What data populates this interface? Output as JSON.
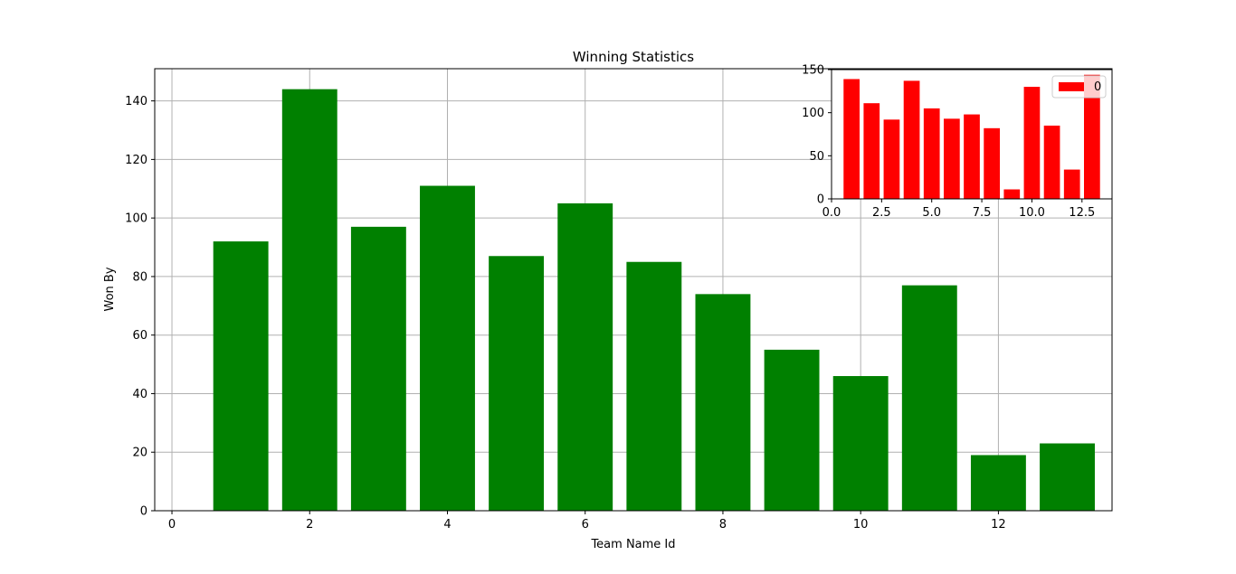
{
  "chart_data": [
    {
      "type": "bar",
      "title": "Winning Statistics",
      "xlabel": "Team Name Id",
      "ylabel": "Won By",
      "x": [
        1,
        2,
        3,
        4,
        5,
        6,
        7,
        8,
        9,
        10,
        11,
        12,
        13
      ],
      "values": [
        92,
        144,
        97,
        111,
        87,
        105,
        85,
        74,
        55,
        46,
        77,
        19,
        23
      ],
      "color": "#008000",
      "xlim": [
        -0.25,
        13.65
      ],
      "ylim": [
        0,
        151
      ],
      "xticks": [
        0,
        2,
        4,
        6,
        8,
        10,
        12
      ],
      "xtick_labels": [
        "0",
        "2",
        "4",
        "6",
        "8",
        "10",
        "12"
      ],
      "yticks": [
        0,
        20,
        40,
        60,
        80,
        100,
        120,
        140
      ],
      "ytick_labels": [
        "0",
        "20",
        "40",
        "60",
        "80",
        "100",
        "120",
        "140"
      ],
      "grid": true
    },
    {
      "type": "bar",
      "title": "",
      "xlabel": "",
      "ylabel": "",
      "x": [
        1,
        2,
        3,
        4,
        5,
        6,
        7,
        8,
        9,
        10,
        11,
        12,
        13
      ],
      "values": [
        139,
        111,
        92,
        137,
        105,
        93,
        98,
        82,
        11,
        130,
        85,
        34,
        144
      ],
      "color": "#ff0000",
      "xlim": [
        0,
        14
      ],
      "ylim": [
        0,
        150
      ],
      "xticks": [
        0,
        2.5,
        5,
        7.5,
        10,
        12.5
      ],
      "xtick_labels": [
        "0.0",
        "2.5",
        "5.0",
        "7.5",
        "10.0",
        "12.5"
      ],
      "yticks": [
        0,
        50,
        100,
        150
      ],
      "ytick_labels": [
        "0",
        "50",
        "100",
        "150"
      ],
      "legend": {
        "label": "0",
        "location": "top-right"
      },
      "grid": false
    }
  ]
}
